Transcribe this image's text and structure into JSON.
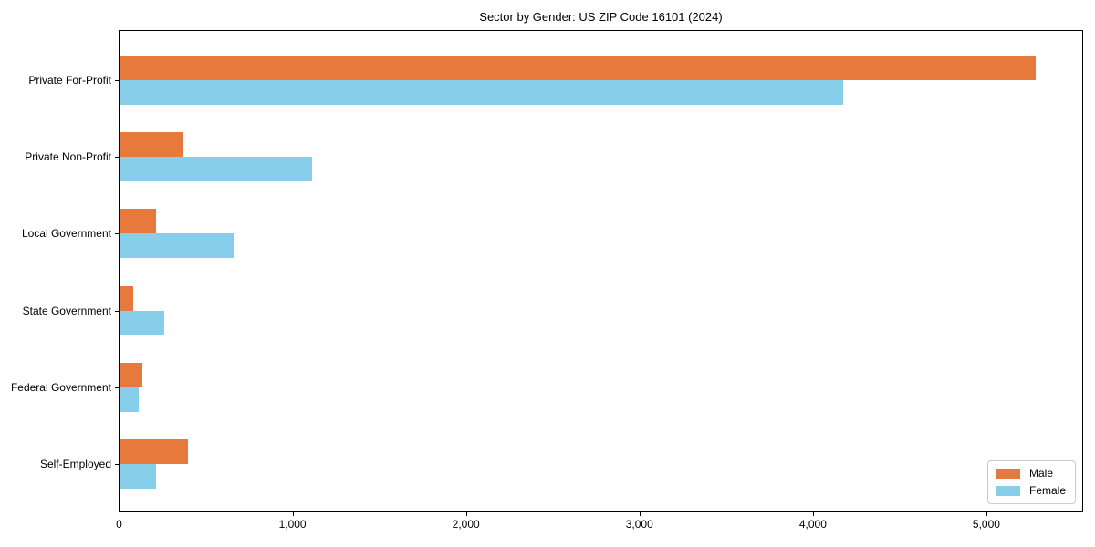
{
  "chart_data": {
    "type": "bar",
    "orientation": "horizontal",
    "title": "Sector by Gender: US ZIP Code 16101 (2024)",
    "categories": [
      "Private For-Profit",
      "Private Non-Profit",
      "Local Government",
      "State Government",
      "Federal Government",
      "Self-Employed"
    ],
    "series": [
      {
        "name": "Male",
        "color": "#E8793D",
        "values": [
          5280,
          370,
          210,
          80,
          130,
          395
        ]
      },
      {
        "name": "Female",
        "color": "#87CEEB",
        "values": [
          4170,
          1110,
          660,
          260,
          110,
          210
        ]
      }
    ],
    "xlabel": "",
    "ylabel": "",
    "xlim": [
      0,
      5550
    ],
    "x_ticks": [
      0,
      1000,
      2000,
      3000,
      4000,
      5000
    ],
    "x_tick_labels": [
      "0",
      "1,000",
      "2,000",
      "3,000",
      "4,000",
      "5,000"
    ],
    "grid": false,
    "legend_position": "lower right",
    "plot_border_color": "#000000",
    "background_color": "#ffffff"
  }
}
